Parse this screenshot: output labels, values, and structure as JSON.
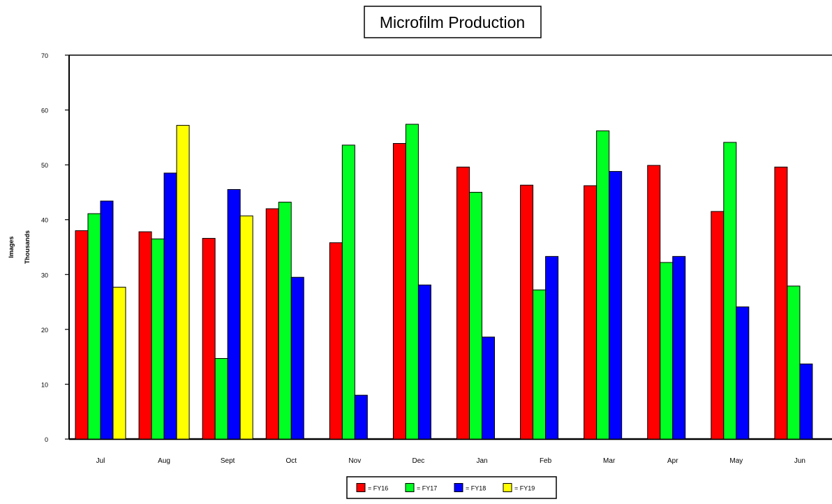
{
  "chart_data": {
    "type": "bar",
    "title": "Microfilm Production",
    "ylabel_lines": [
      "Images",
      "Thousands"
    ],
    "xlabel": "",
    "ylim": [
      0,
      70
    ],
    "yticks": [
      0,
      10,
      20,
      30,
      40,
      50,
      60,
      70
    ],
    "categories": [
      "Jul",
      "Aug",
      "Sept",
      "Oct",
      "Nov",
      "Dec",
      "Jan",
      "Feb",
      "Mar",
      "Apr",
      "May",
      "Jun"
    ],
    "series": [
      {
        "name": "= FY16",
        "color": "#ff0000",
        "values": [
          38.0,
          37.8,
          36.6,
          42.0,
          35.8,
          53.9,
          49.6,
          46.3,
          46.2,
          49.9,
          41.5,
          49.6
        ]
      },
      {
        "name": "= FY17",
        "color": "#00ff22",
        "values": [
          41.1,
          36.5,
          14.7,
          43.2,
          53.6,
          57.4,
          45.0,
          27.2,
          56.2,
          32.2,
          54.1,
          27.9
        ]
      },
      {
        "name": "= FY18",
        "color": "#0000ff",
        "values": [
          43.4,
          48.5,
          45.5,
          29.5,
          8.0,
          28.1,
          18.6,
          33.3,
          48.8,
          33.3,
          24.1,
          13.7
        ]
      },
      {
        "name": "= FY19",
        "color": "#ffff00",
        "values": [
          27.7,
          57.2,
          40.7,
          null,
          null,
          null,
          null,
          null,
          null,
          null,
          null,
          null
        ]
      }
    ],
    "grid": false,
    "legend_position": "bottom-center"
  }
}
